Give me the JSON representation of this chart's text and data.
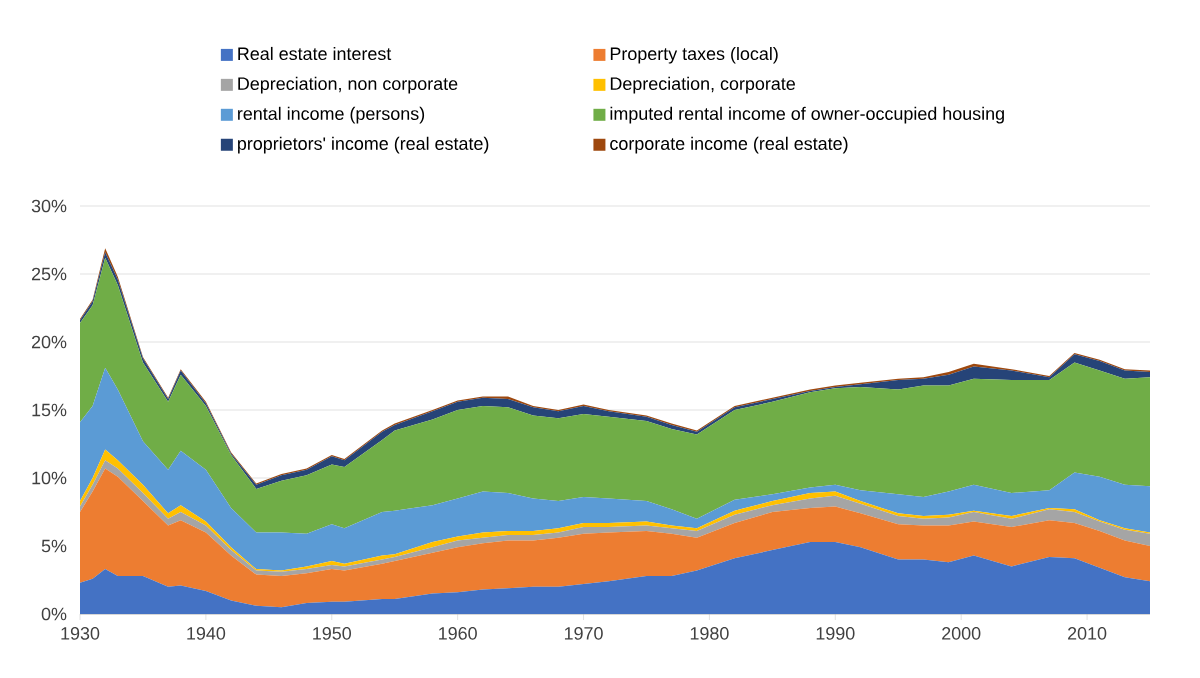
{
  "chart_data": {
    "type": "area",
    "stacked": true,
    "x": [
      1930,
      1931,
      1932,
      1933,
      1935,
      1937,
      1938,
      1940,
      1942,
      1944,
      1946,
      1948,
      1950,
      1951,
      1954,
      1955,
      1958,
      1960,
      1962,
      1964,
      1966,
      1968,
      1970,
      1972,
      1975,
      1977,
      1979,
      1982,
      1985,
      1988,
      1990,
      1992,
      1995,
      1997,
      1999,
      2001,
      2004,
      2007,
      2009,
      2011,
      2013,
      2015
    ],
    "xlim": [
      1930,
      2015
    ],
    "xticks": [
      1930,
      1940,
      1950,
      1960,
      1970,
      1980,
      1990,
      2000,
      2010
    ],
    "ylim": [
      0,
      30
    ],
    "yticks": [
      {
        "value": 0,
        "label": "0%"
      },
      {
        "value": 5,
        "label": "5%"
      },
      {
        "value": 10,
        "label": "10%"
      },
      {
        "value": 15,
        "label": "15%"
      },
      {
        "value": 20,
        "label": "20%"
      },
      {
        "value": 25,
        "label": "25%"
      },
      {
        "value": 30,
        "label": "30%"
      }
    ],
    "grid": "y",
    "legend": "top",
    "series": [
      {
        "name": "Real estate interest",
        "color": "#4472c4",
        "values": [
          2.3,
          2.6,
          3.3,
          2.8,
          2.8,
          2.0,
          2.1,
          1.7,
          1.0,
          0.6,
          0.5,
          0.8,
          0.9,
          0.9,
          1.1,
          1.1,
          1.5,
          1.6,
          1.8,
          1.9,
          2.0,
          2.0,
          2.2,
          2.4,
          2.8,
          2.8,
          3.2,
          4.1,
          4.7,
          5.3,
          5.3,
          4.9,
          4.0,
          4.0,
          3.8,
          4.3,
          3.5,
          4.2,
          4.1,
          3.4,
          2.7,
          2.4
        ]
      },
      {
        "name": "Property taxes (local)",
        "color": "#ed7d31",
        "values": [
          5.2,
          6.4,
          7.4,
          7.3,
          5.5,
          4.5,
          4.8,
          4.3,
          3.3,
          2.3,
          2.3,
          2.2,
          2.4,
          2.3,
          2.6,
          2.8,
          3.0,
          3.3,
          3.4,
          3.5,
          3.4,
          3.6,
          3.7,
          3.6,
          3.3,
          3.1,
          2.4,
          2.6,
          2.8,
          2.5,
          2.6,
          2.5,
          2.6,
          2.5,
          2.7,
          2.5,
          2.9,
          2.7,
          2.6,
          2.7,
          2.7,
          2.6
        ]
      },
      {
        "name": "Depreciation, non corporate",
        "color": "#a5a5a5",
        "values": [
          0.4,
          0.5,
          0.6,
          0.6,
          0.6,
          0.5,
          0.6,
          0.5,
          0.4,
          0.3,
          0.3,
          0.3,
          0.3,
          0.3,
          0.3,
          0.3,
          0.4,
          0.5,
          0.4,
          0.4,
          0.4,
          0.4,
          0.5,
          0.4,
          0.4,
          0.4,
          0.5,
          0.6,
          0.5,
          0.7,
          0.8,
          0.7,
          0.6,
          0.5,
          0.6,
          0.7,
          0.6,
          0.8,
          0.8,
          0.7,
          0.8,
          0.9
        ]
      },
      {
        "name": "Depreciation, corporate",
        "color": "#ffc000",
        "values": [
          0.4,
          0.5,
          0.8,
          0.6,
          0.6,
          0.4,
          0.5,
          0.3,
          0.2,
          0.1,
          0.1,
          0.2,
          0.3,
          0.2,
          0.3,
          0.2,
          0.4,
          0.3,
          0.4,
          0.3,
          0.3,
          0.3,
          0.3,
          0.3,
          0.3,
          0.2,
          0.2,
          0.3,
          0.3,
          0.4,
          0.3,
          0.2,
          0.2,
          0.2,
          0.2,
          0.1,
          0.2,
          0.1,
          0.2,
          0.1,
          0.1,
          0.1
        ]
      },
      {
        "name": "rental income (persons)",
        "color": "#5b9bd5",
        "values": [
          5.8,
          5.3,
          6.0,
          5.2,
          3.2,
          3.2,
          4.0,
          3.8,
          2.9,
          2.7,
          2.8,
          2.4,
          2.7,
          2.6,
          3.2,
          3.2,
          2.7,
          2.8,
          3.0,
          2.8,
          2.4,
          2.0,
          1.9,
          1.8,
          1.5,
          1.2,
          0.7,
          0.8,
          0.5,
          0.4,
          0.5,
          0.8,
          1.4,
          1.4,
          1.7,
          1.9,
          1.7,
          1.3,
          2.7,
          3.2,
          3.2,
          3.4
        ]
      },
      {
        "name": "imputed rental income of owner-occupied housing",
        "color": "#70ad47",
        "values": [
          7.3,
          7.4,
          8.1,
          7.7,
          5.8,
          5.0,
          5.6,
          4.7,
          3.9,
          3.2,
          3.8,
          4.3,
          4.4,
          4.5,
          5.3,
          5.9,
          6.3,
          6.5,
          6.3,
          6.3,
          6.1,
          6.1,
          6.1,
          6.0,
          5.9,
          5.9,
          6.2,
          6.6,
          6.8,
          7.0,
          7.1,
          7.6,
          7.7,
          8.2,
          7.8,
          7.8,
          8.3,
          8.1,
          8.1,
          7.8,
          7.8,
          8.0
        ]
      },
      {
        "name": "proprietors' income (real estate)",
        "color": "#264478",
        "values": [
          0.2,
          0.3,
          0.4,
          0.4,
          0.3,
          0.2,
          0.3,
          0.2,
          0.1,
          0.3,
          0.4,
          0.4,
          0.6,
          0.5,
          0.6,
          0.4,
          0.6,
          0.6,
          0.6,
          0.6,
          0.6,
          0.5,
          0.6,
          0.4,
          0.3,
          0.3,
          0.2,
          0.2,
          0.2,
          0.1,
          0.1,
          0.2,
          0.7,
          0.5,
          0.8,
          0.9,
          0.7,
          0.2,
          0.6,
          0.7,
          0.6,
          0.4
        ]
      },
      {
        "name": "corporate income (real estate)",
        "color": "#9e480e",
        "values": [
          0.1,
          0.1,
          0.3,
          0.2,
          0.1,
          0.1,
          0.1,
          0.1,
          0.1,
          0.1,
          0.1,
          0.1,
          0.1,
          0.1,
          0.1,
          0.1,
          0.1,
          0.1,
          0.1,
          0.2,
          0.1,
          0.1,
          0.1,
          0.1,
          0.1,
          0.1,
          0.1,
          0.1,
          0.1,
          0.1,
          0.1,
          0.1,
          0.1,
          0.1,
          0.2,
          0.2,
          0.1,
          0.1,
          0.1,
          0.1,
          0.1,
          0.1
        ]
      }
    ]
  }
}
